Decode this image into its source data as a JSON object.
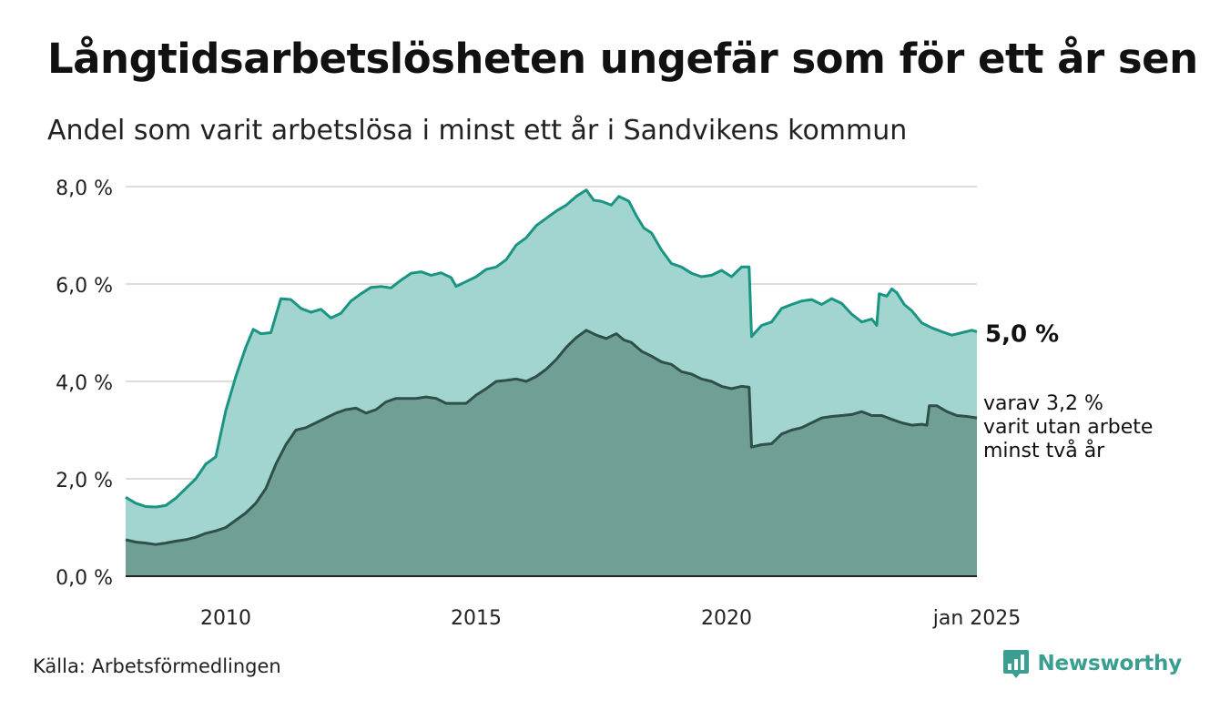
{
  "title": "Långtidsarbetslösheten ungefär som för ett år sen",
  "subtitle": "Andel som varit arbetslösa i minst ett år i Sandvikens kommun",
  "source": "Källa: Arbetsförmedlingen",
  "brand": {
    "name": "Newsworthy",
    "icon": "newsworthy-logo-icon",
    "color": "#3a9e91"
  },
  "chart_data": {
    "type": "area",
    "xlabel": "",
    "ylabel": "",
    "x_start": 2008.0,
    "x_end": 2025.0,
    "ylim": [
      0,
      8
    ],
    "y_ticks": [
      0,
      2,
      4,
      6,
      8
    ],
    "y_tick_labels": [
      "0,0 %",
      "2,0 %",
      "4,0 %",
      "6,0 %",
      "8,0 %"
    ],
    "x_ticks": [
      2010,
      2015,
      2020,
      2025
    ],
    "x_tick_labels": [
      "2010",
      "2015",
      "2020",
      "jan 2025"
    ],
    "grid": true,
    "series": [
      {
        "key": "total",
        "color": "#1a9483",
        "fill": "#a2d5cf",
        "points": [
          [
            2008.0,
            1.62
          ],
          [
            2008.2,
            1.5
          ],
          [
            2008.4,
            1.43
          ],
          [
            2008.6,
            1.42
          ],
          [
            2008.8,
            1.45
          ],
          [
            2009.0,
            1.6
          ],
          [
            2009.2,
            1.8
          ],
          [
            2009.4,
            2.0
          ],
          [
            2009.6,
            2.3
          ],
          [
            2009.8,
            2.45
          ],
          [
            2010.0,
            3.4
          ],
          [
            2010.2,
            4.1
          ],
          [
            2010.4,
            4.7
          ],
          [
            2010.55,
            5.07
          ],
          [
            2010.7,
            4.98
          ],
          [
            2010.9,
            5.0
          ],
          [
            2011.1,
            5.7
          ],
          [
            2011.3,
            5.68
          ],
          [
            2011.5,
            5.5
          ],
          [
            2011.7,
            5.42
          ],
          [
            2011.9,
            5.48
          ],
          [
            2012.1,
            5.3
          ],
          [
            2012.3,
            5.4
          ],
          [
            2012.5,
            5.65
          ],
          [
            2012.7,
            5.8
          ],
          [
            2012.9,
            5.93
          ],
          [
            2013.1,
            5.95
          ],
          [
            2013.3,
            5.92
          ],
          [
            2013.5,
            6.08
          ],
          [
            2013.7,
            6.22
          ],
          [
            2013.9,
            6.25
          ],
          [
            2014.1,
            6.18
          ],
          [
            2014.3,
            6.23
          ],
          [
            2014.5,
            6.13
          ],
          [
            2014.6,
            5.95
          ],
          [
            2014.8,
            6.05
          ],
          [
            2015.0,
            6.15
          ],
          [
            2015.2,
            6.3
          ],
          [
            2015.4,
            6.35
          ],
          [
            2015.6,
            6.5
          ],
          [
            2015.8,
            6.8
          ],
          [
            2016.0,
            6.95
          ],
          [
            2016.2,
            7.2
          ],
          [
            2016.4,
            7.35
          ],
          [
            2016.6,
            7.5
          ],
          [
            2016.8,
            7.62
          ],
          [
            2017.0,
            7.8
          ],
          [
            2017.2,
            7.93
          ],
          [
            2017.35,
            7.72
          ],
          [
            2017.5,
            7.7
          ],
          [
            2017.7,
            7.62
          ],
          [
            2017.85,
            7.8
          ],
          [
            2018.05,
            7.7
          ],
          [
            2018.2,
            7.4
          ],
          [
            2018.35,
            7.15
          ],
          [
            2018.5,
            7.05
          ],
          [
            2018.7,
            6.7
          ],
          [
            2018.9,
            6.42
          ],
          [
            2019.1,
            6.35
          ],
          [
            2019.3,
            6.22
          ],
          [
            2019.5,
            6.15
          ],
          [
            2019.7,
            6.18
          ],
          [
            2019.9,
            6.28
          ],
          [
            2020.1,
            6.15
          ],
          [
            2020.3,
            6.35
          ],
          [
            2020.45,
            6.35
          ],
          [
            2020.5,
            4.92
          ],
          [
            2020.7,
            5.15
          ],
          [
            2020.9,
            5.22
          ],
          [
            2021.1,
            5.5
          ],
          [
            2021.3,
            5.58
          ],
          [
            2021.5,
            5.65
          ],
          [
            2021.7,
            5.68
          ],
          [
            2021.9,
            5.58
          ],
          [
            2022.1,
            5.7
          ],
          [
            2022.3,
            5.6
          ],
          [
            2022.5,
            5.38
          ],
          [
            2022.7,
            5.22
          ],
          [
            2022.9,
            5.28
          ],
          [
            2023.0,
            5.15
          ],
          [
            2023.05,
            5.8
          ],
          [
            2023.2,
            5.75
          ],
          [
            2023.3,
            5.9
          ],
          [
            2023.4,
            5.82
          ],
          [
            2023.55,
            5.58
          ],
          [
            2023.7,
            5.45
          ],
          [
            2023.9,
            5.2
          ],
          [
            2024.1,
            5.1
          ],
          [
            2024.3,
            5.02
          ],
          [
            2024.5,
            4.95
          ],
          [
            2024.7,
            5.0
          ],
          [
            2024.9,
            5.05
          ],
          [
            2025.0,
            5.02
          ]
        ]
      },
      {
        "key": "two_years",
        "color": "#2f5048",
        "fill": "#709f96",
        "points": [
          [
            2008.0,
            0.75
          ],
          [
            2008.2,
            0.7
          ],
          [
            2008.4,
            0.68
          ],
          [
            2008.6,
            0.65
          ],
          [
            2008.8,
            0.68
          ],
          [
            2009.0,
            0.72
          ],
          [
            2009.2,
            0.75
          ],
          [
            2009.4,
            0.8
          ],
          [
            2009.6,
            0.88
          ],
          [
            2009.8,
            0.93
          ],
          [
            2010.0,
            1.0
          ],
          [
            2010.2,
            1.15
          ],
          [
            2010.4,
            1.3
          ],
          [
            2010.6,
            1.5
          ],
          [
            2010.8,
            1.8
          ],
          [
            2011.0,
            2.3
          ],
          [
            2011.2,
            2.7
          ],
          [
            2011.4,
            3.0
          ],
          [
            2011.6,
            3.05
          ],
          [
            2011.8,
            3.15
          ],
          [
            2012.0,
            3.25
          ],
          [
            2012.2,
            3.35
          ],
          [
            2012.4,
            3.42
          ],
          [
            2012.6,
            3.45
          ],
          [
            2012.8,
            3.35
          ],
          [
            2013.0,
            3.42
          ],
          [
            2013.2,
            3.58
          ],
          [
            2013.4,
            3.65
          ],
          [
            2013.6,
            3.65
          ],
          [
            2013.8,
            3.65
          ],
          [
            2014.0,
            3.68
          ],
          [
            2014.2,
            3.65
          ],
          [
            2014.4,
            3.55
          ],
          [
            2014.6,
            3.55
          ],
          [
            2014.8,
            3.55
          ],
          [
            2015.0,
            3.72
          ],
          [
            2015.2,
            3.85
          ],
          [
            2015.4,
            4.0
          ],
          [
            2015.6,
            4.02
          ],
          [
            2015.8,
            4.05
          ],
          [
            2016.0,
            4.0
          ],
          [
            2016.2,
            4.1
          ],
          [
            2016.4,
            4.25
          ],
          [
            2016.6,
            4.45
          ],
          [
            2016.8,
            4.7
          ],
          [
            2017.0,
            4.9
          ],
          [
            2017.2,
            5.05
          ],
          [
            2017.4,
            4.95
          ],
          [
            2017.6,
            4.88
          ],
          [
            2017.8,
            4.98
          ],
          [
            2017.95,
            4.85
          ],
          [
            2018.1,
            4.8
          ],
          [
            2018.3,
            4.62
          ],
          [
            2018.5,
            4.52
          ],
          [
            2018.7,
            4.4
          ],
          [
            2018.9,
            4.35
          ],
          [
            2019.1,
            4.2
          ],
          [
            2019.3,
            4.15
          ],
          [
            2019.5,
            4.05
          ],
          [
            2019.7,
            4.0
          ],
          [
            2019.9,
            3.9
          ],
          [
            2020.1,
            3.85
          ],
          [
            2020.3,
            3.9
          ],
          [
            2020.45,
            3.88
          ],
          [
            2020.5,
            2.65
          ],
          [
            2020.7,
            2.7
          ],
          [
            2020.9,
            2.72
          ],
          [
            2021.1,
            2.92
          ],
          [
            2021.3,
            3.0
          ],
          [
            2021.5,
            3.05
          ],
          [
            2021.7,
            3.15
          ],
          [
            2021.9,
            3.25
          ],
          [
            2022.1,
            3.28
          ],
          [
            2022.3,
            3.3
          ],
          [
            2022.5,
            3.32
          ],
          [
            2022.7,
            3.38
          ],
          [
            2022.9,
            3.3
          ],
          [
            2023.1,
            3.3
          ],
          [
            2023.3,
            3.22
          ],
          [
            2023.5,
            3.15
          ],
          [
            2023.7,
            3.1
          ],
          [
            2023.9,
            3.12
          ],
          [
            2024.0,
            3.1
          ],
          [
            2024.05,
            3.5
          ],
          [
            2024.2,
            3.5
          ],
          [
            2024.4,
            3.38
          ],
          [
            2024.6,
            3.3
          ],
          [
            2024.8,
            3.28
          ],
          [
            2025.0,
            3.25
          ]
        ]
      }
    ],
    "labels": {
      "total_value": "5,0 %",
      "two_years_lines": [
        "varav 3,2 %",
        "varit utan arbete",
        "minst två år"
      ]
    }
  }
}
